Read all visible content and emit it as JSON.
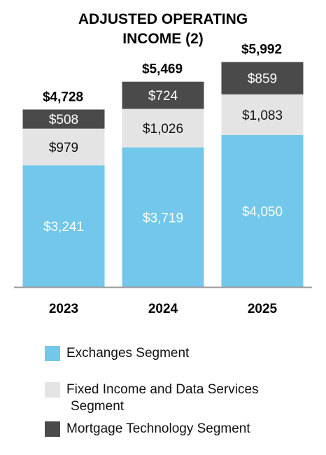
{
  "chart_data": {
    "type": "bar",
    "stacked": true,
    "title": "ADJUSTED OPERATING INCOME (2)",
    "title_lines": [
      "ADJUSTED OPERATING",
      "INCOME (2)"
    ],
    "categories": [
      "2023",
      "2024",
      "2025"
    ],
    "series": [
      {
        "name": "Exchanges Segment",
        "values": [
          3241,
          3719,
          4050
        ],
        "labels": [
          "$3,241",
          "$3,719",
          "$4,050"
        ],
        "color": "#72c7ea",
        "label_color": "#ffffff"
      },
      {
        "name": "Fixed Income and Data Services Segment",
        "name_lines": [
          "Fixed Income and Data Services",
          "Segment"
        ],
        "values": [
          979,
          1026,
          1083
        ],
        "labels": [
          "$979",
          "$1,026",
          "$1,083"
        ],
        "color": "#e4e4e4",
        "label_color": "#111111"
      },
      {
        "name": "Mortgage Technology Segment",
        "values": [
          508,
          724,
          859
        ],
        "labels": [
          "$508",
          "$724",
          "$859"
        ],
        "color": "#4a4a4a",
        "label_color": "#ffffff"
      }
    ],
    "totals": [
      4728,
      5469,
      5992
    ],
    "total_labels": [
      "$4,728",
      "$5,469",
      "$5,992"
    ],
    "ylim": [
      0,
      6000
    ],
    "grid": false,
    "legend_position": "bottom",
    "axis_color": "#9a9a9a"
  }
}
